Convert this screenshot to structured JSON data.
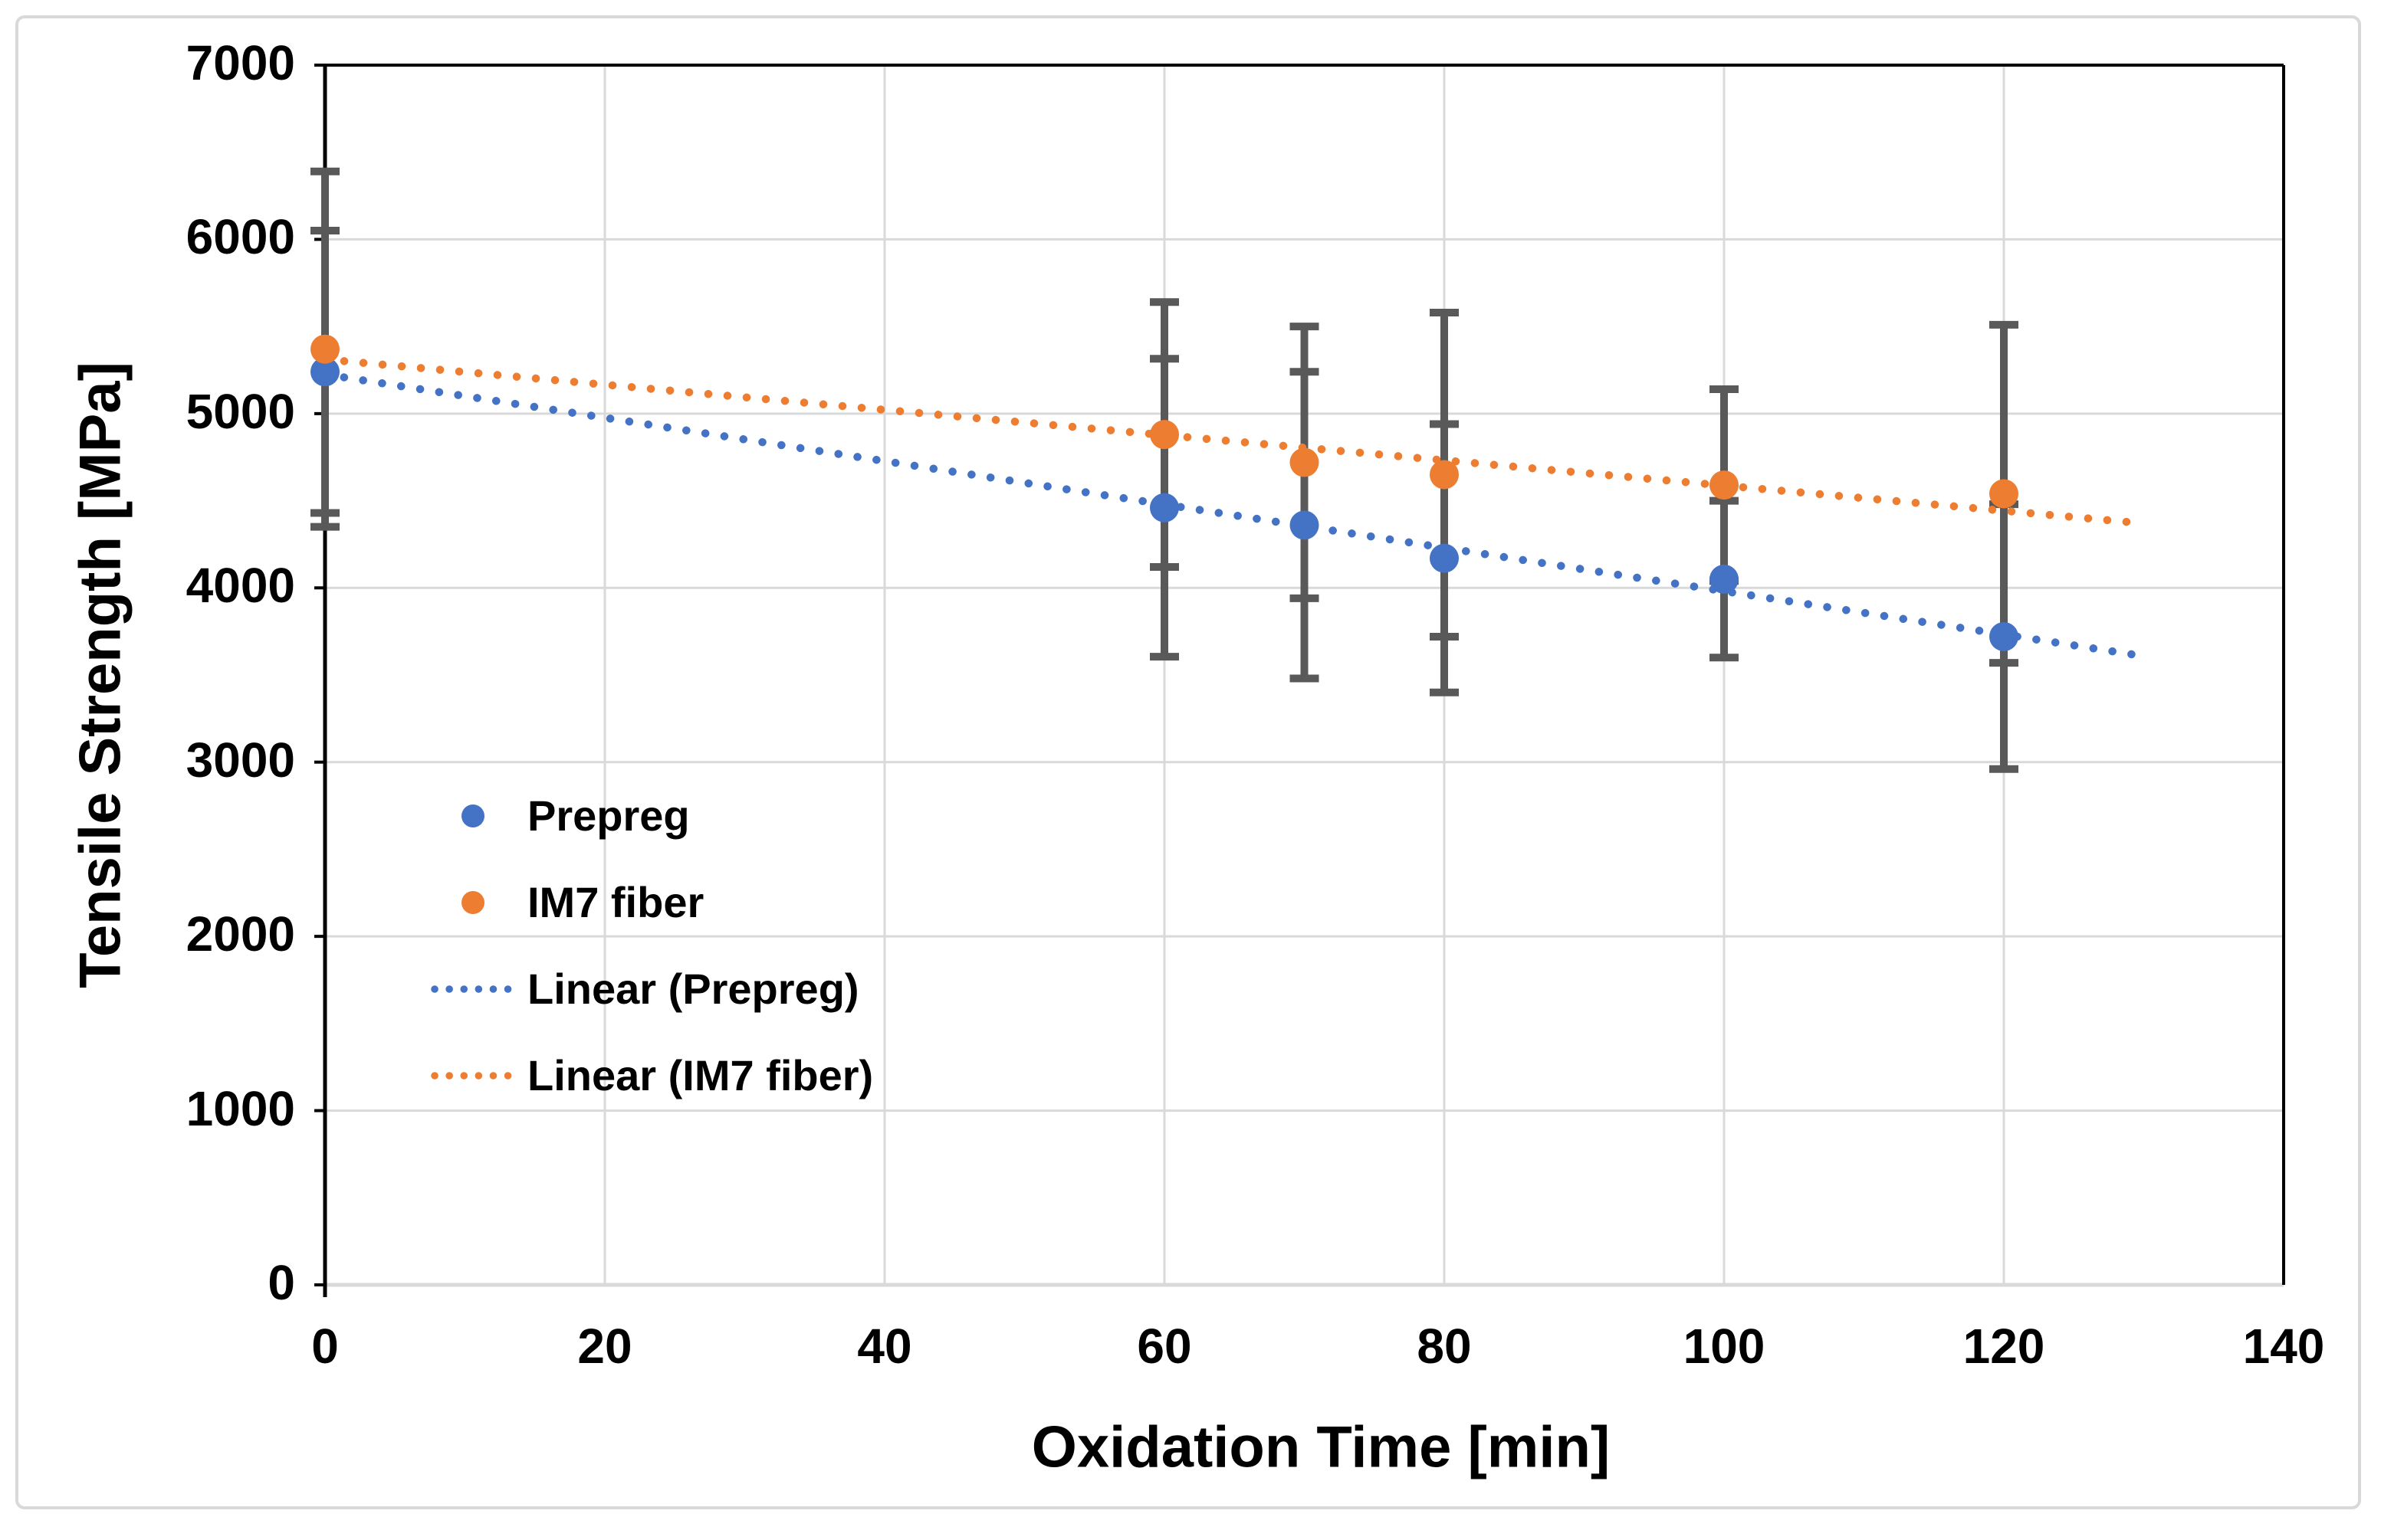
{
  "figure": {
    "background": "#ffffff",
    "outer_border_color": "#d9d9d9",
    "axis_line_color": "#000000",
    "text_color": "#000000"
  },
  "chart_data": {
    "type": "scatter",
    "title": "",
    "xlabel": "Oxidation Time [min]",
    "ylabel": "Tensile Strength [MPa]",
    "xlim": [
      0,
      140
    ],
    "ylim": [
      0,
      7000
    ],
    "x_ticks": [
      0,
      20,
      40,
      60,
      80,
      100,
      120,
      140
    ],
    "y_ticks": [
      0,
      1000,
      2000,
      3000,
      4000,
      5000,
      6000,
      7000
    ],
    "grid": true,
    "grid_color": "#d9d9d9",
    "error_bar_color": "#595959",
    "legend_position": "inside-left-middle",
    "legend_labels": [
      "Prepreg",
      "IM7 fiber",
      "Linear (Prepreg)",
      "Linear (IM7 fiber)"
    ],
    "series": [
      {
        "name": "Prepreg",
        "color": "#4472c4",
        "marker": "circle",
        "x": [
          0,
          60,
          70,
          80,
          100,
          120
        ],
        "y": [
          5240,
          4460,
          4360,
          4170,
          4050,
          3720
        ],
        "y_err": [
          810,
          855,
          880,
          770,
          450,
          760
        ]
      },
      {
        "name": "IM7 fiber",
        "color": "#ed7d31",
        "marker": "circle",
        "x": [
          0,
          60,
          70,
          80,
          100,
          120
        ],
        "y": [
          5370,
          4880,
          4720,
          4650,
          4590,
          4540
        ],
        "y_err": [
          1020,
          760,
          780,
          930,
          550,
          970
        ]
      }
    ],
    "trendlines": [
      {
        "name": "Linear (Prepreg)",
        "color": "#4472c4",
        "style": "dotted",
        "x": [
          0,
          130
        ],
        "y": [
          5225,
          3608
        ]
      },
      {
        "name": "Linear (IM7 fiber)",
        "color": "#ed7d31",
        "style": "dotted",
        "x": [
          0,
          130
        ],
        "y": [
          5311,
          4370
        ]
      }
    ]
  }
}
